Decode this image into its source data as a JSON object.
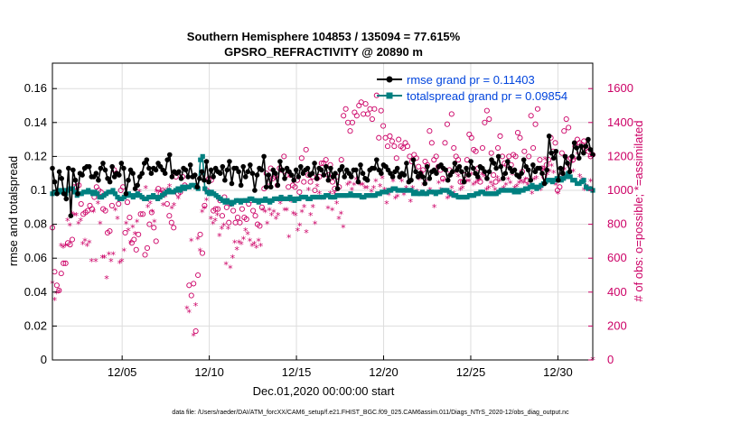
{
  "chart_data": {
    "type": "line",
    "title": "Southern Hemisphere 104853 / 135094 = 77.615%",
    "subtitle": "GPSRO_REFRACTIVITY @ 20890 m",
    "xlabel": "Dec.01,2020 00:00:00 start",
    "ylabel": "rmse and totalspread",
    "y2label": "# of obs: o=possible; *=assimilated",
    "footnote": "data file: /Users/raeder/DAI/ATM_forcXX/CAM6_setup/f.e21.FHIST_BGC.f09_025.CAM6assim.011/Diags_NTrS_2020-12/obs_diag_output.nc",
    "xlim": [
      1,
      32
    ],
    "ylim": [
      0,
      0.175
    ],
    "y2lim": [
      0,
      1750
    ],
    "x_tick_labels": [
      "12/05",
      "12/10",
      "12/15",
      "12/20",
      "12/25",
      "12/30"
    ],
    "y_tick_labels": [
      "0",
      "0.02",
      "0.04",
      "0.06",
      "0.08",
      "0.1",
      "0.12",
      "0.14",
      "0.16"
    ],
    "y2_tick_labels": [
      "0",
      "200",
      "400",
      "600",
      "800",
      "1000",
      "1200",
      "1400",
      "1600"
    ],
    "grid": true,
    "legend_position": "top-right",
    "colors": {
      "rmse": "#000000",
      "spread": "#008080",
      "obs": "#cc0066",
      "legend_text": "#0044dd"
    },
    "series": [
      {
        "name": "rmse grand pr = 0.11403",
        "axis": "left",
        "values": [
          0.113,
          0.105,
          0.098,
          0.111,
          0.107,
          0.098,
          0.095,
          0.113,
          0.085,
          0.112,
          0.106,
          0.098,
          0.11,
          0.109,
          0.113,
          0.114,
          0.114,
          0.108,
          0.108,
          0.11,
          0.106,
          0.113,
          0.116,
          0.112,
          0.107,
          0.105,
          0.114,
          0.108,
          0.11,
          0.109,
          0.116,
          0.113,
          0.098,
          0.106,
          0.112,
          0.11,
          0.101,
          0.103,
          0.108,
          0.11,
          0.116,
          0.118,
          0.113,
          0.11,
          0.113,
          0.112,
          0.116,
          0.114,
          0.112,
          0.11,
          0.118,
          0.121,
          0.108,
          0.111,
          0.11,
          0.111,
          0.107,
          0.113,
          0.112,
          0.108,
          0.115,
          0.108,
          0.109,
          0.102,
          0.107,
          0.111,
          0.106,
          0.117,
          0.105,
          0.112,
          0.108,
          0.113,
          0.111,
          0.11,
          0.114,
          0.106,
          0.112,
          0.117,
          0.104,
          0.113,
          0.113,
          0.111,
          0.103,
          0.114,
          0.108,
          0.111,
          0.115,
          0.11,
          0.1,
          0.109,
          0.113,
          0.112,
          0.12,
          0.102,
          0.109,
          0.102,
          0.112,
          0.11,
          0.103,
          0.117,
          0.112,
          0.107,
          0.113,
          0.111,
          0.109,
          0.106,
          0.112,
          0.108,
          0.114,
          0.11,
          0.112,
          0.113,
          0.109,
          0.11,
          0.116,
          0.107,
          0.113,
          0.112,
          0.109,
          0.114,
          0.106,
          0.113,
          0.108,
          0.11,
          0.101,
          0.112,
          0.114,
          0.108,
          0.112,
          0.11,
          0.108,
          0.112,
          0.112,
          0.105,
          0.115,
          0.11,
          0.107,
          0.106,
          0.112,
          0.113,
          0.113,
          0.118,
          0.112,
          0.11,
          0.115,
          0.114,
          0.112,
          0.11,
          0.108,
          0.111,
          0.113,
          0.108,
          0.11,
          0.109,
          0.116,
          0.105,
          0.106,
          0.118,
          0.111,
          0.108,
          0.11,
          0.108,
          0.104,
          0.114,
          0.107,
          0.111,
          0.112,
          0.11,
          0.114,
          0.115,
          0.113,
          0.112,
          0.106,
          0.109,
          0.111,
          0.116,
          0.112,
          0.114,
          0.111,
          0.105,
          0.113,
          0.109,
          0.117,
          0.113,
          0.11,
          0.108,
          0.114,
          0.113,
          0.111,
          0.107,
          0.111,
          0.118,
          0.116,
          0.113,
          0.12,
          0.114,
          0.107,
          0.11,
          0.117,
          0.113,
          0.111,
          0.112,
          0.109,
          0.108,
          0.11,
          0.118,
          0.114,
          0.112,
          0.106,
          0.115,
          0.111,
          0.113,
          0.113,
          0.11,
          0.104,
          0.112,
          0.132,
          0.122,
          0.119,
          0.123,
          0.106,
          0.113,
          0.11,
          0.12,
          0.116,
          0.111,
          0.12,
          0.128,
          0.125,
          0.119,
          0.126,
          0.122,
          0.126,
          0.13,
          0.124,
          0.121
        ]
      },
      {
        "name": "totalspread grand pr = 0.09854",
        "axis": "left",
        "values": [
          0.098,
          0.099,
          0.099,
          0.1,
          0.099,
          0.1,
          0.098,
          0.1,
          0.101,
          0.101,
          0.099,
          0.097,
          0.098,
          0.098,
          0.099,
          0.099,
          0.1,
          0.099,
          0.098,
          0.099,
          0.098,
          0.096,
          0.096,
          0.097,
          0.098,
          0.099,
          0.099,
          0.1,
          0.098,
          0.096,
          0.095,
          0.095,
          0.096,
          0.097,
          0.098,
          0.097,
          0.096,
          0.097,
          0.098,
          0.097,
          0.096,
          0.095,
          0.095,
          0.096,
          0.096,
          0.097,
          0.096,
          0.095,
          0.096,
          0.097,
          0.098,
          0.099,
          0.1,
          0.099,
          0.099,
          0.1,
          0.101,
          0.1,
          0.102,
          0.101,
          0.102,
          0.102,
          0.103,
          0.103,
          0.102,
          0.101,
          0.118,
          0.12,
          0.101,
          0.099,
          0.098,
          0.099,
          0.098,
          0.097,
          0.096,
          0.095,
          0.094,
          0.093,
          0.094,
          0.093,
          0.092,
          0.093,
          0.094,
          0.094,
          0.093,
          0.094,
          0.094,
          0.094,
          0.095,
          0.095,
          0.094,
          0.094,
          0.093,
          0.094,
          0.094,
          0.095,
          0.094,
          0.093,
          0.094,
          0.095,
          0.095,
          0.095,
          0.096,
          0.095,
          0.095,
          0.095,
          0.096,
          0.095,
          0.094,
          0.095,
          0.095,
          0.096,
          0.096,
          0.096,
          0.095,
          0.095,
          0.096,
          0.096,
          0.096,
          0.096,
          0.096,
          0.096,
          0.097,
          0.097,
          0.096,
          0.096,
          0.096,
          0.097,
          0.097,
          0.097,
          0.097,
          0.097,
          0.097,
          0.098,
          0.097,
          0.097,
          0.097,
          0.097,
          0.096,
          0.096,
          0.097,
          0.097,
          0.097,
          0.097,
          0.097,
          0.098,
          0.098,
          0.099,
          0.099,
          0.099,
          0.1,
          0.1,
          0.101,
          0.101,
          0.1,
          0.1,
          0.1,
          0.1,
          0.1,
          0.1,
          0.1,
          0.098,
          0.099,
          0.098,
          0.098,
          0.099,
          0.098,
          0.098,
          0.099,
          0.099,
          0.099,
          0.098,
          0.099,
          0.099,
          0.1,
          0.1,
          0.1,
          0.099,
          0.098,
          0.097,
          0.097,
          0.096,
          0.096,
          0.096,
          0.096,
          0.096,
          0.097,
          0.097,
          0.097,
          0.098,
          0.098,
          0.099,
          0.099,
          0.098,
          0.098,
          0.098,
          0.098,
          0.098,
          0.098,
          0.099,
          0.1,
          0.1,
          0.1,
          0.1,
          0.1,
          0.1,
          0.099,
          0.1,
          0.099,
          0.1,
          0.1,
          0.101,
          0.101,
          0.102,
          0.103,
          0.102,
          0.101,
          0.102,
          0.103,
          0.104,
          0.105,
          0.106,
          0.106,
          0.105,
          0.106,
          0.107,
          0.107,
          0.106,
          0.107,
          0.108,
          0.11,
          0.108,
          0.106,
          0.106,
          0.104,
          0.104,
          0.105,
          0.106,
          0.102,
          0.101,
          0.101,
          0.1
        ]
      },
      {
        "name": "possible",
        "axis": "right",
        "marker": "o",
        "values": [
          780,
          520,
          440,
          410,
          510,
          570,
          570,
          690,
          680,
          710,
          1020,
          1020,
          1030,
          920,
          860,
          870,
          880,
          910,
          890,
          960,
          1020,
          1000,
          990,
          890,
          880,
          750,
          760,
          910,
          1120,
          1100,
          920,
          1000,
          1020,
          750,
          930,
          840,
          690,
          710,
          650,
          740,
          860,
          860,
          620,
          660,
          800,
          870,
          780,
          700,
          1010,
          980,
          1000,
          990,
          920,
          850,
          810,
          780,
          1080,
          980,
          990,
          1080,
          1030,
          1020,
          440,
          380,
          450,
          170,
          500,
          740,
          630,
          910,
          1000,
          1070,
          1060,
          880,
          890,
          890,
          940,
          850,
          960,
          900,
          810,
          920,
          880,
          810,
          840,
          810,
          890,
          840,
          830,
          920,
          940,
          880,
          850,
          800,
          790,
          900,
          1010,
          1100,
          1050,
          1130,
          1070,
          1080,
          1030,
          1130,
          1120,
          1200,
          1090,
          1020,
          1090,
          1030,
          1020,
          1060,
          990,
          1190,
          1050,
          1240,
          1090,
          1050,
          1080,
          1000,
          1070,
          1080,
          1160,
          1160,
          1180,
          1090,
          1150,
          1050,
          1010,
          1080,
          1020,
          1180,
          1440,
          1480,
          1400,
          1350,
          1400,
          1460,
          1440,
          1500,
          1520,
          1450,
          1510,
          1450,
          1480,
          1420,
          1480,
          1560,
          1310,
          1470,
          1380,
          1310,
          1260,
          1320,
          1290,
          1260,
          1190,
          1300,
          1260,
          1250,
          1280,
          1260,
          1200,
          1170,
          1210,
          1190,
          1140,
          1100,
          1120,
          1170,
          1150,
          1350,
          1280,
          1180,
          1200,
          1140,
          1120,
          1070,
          1280,
          1390,
          1120,
          1450,
          1250,
          1200,
          1180,
          1050,
          1050,
          1090,
          1180,
          1330,
          1310,
          1240,
          1230,
          1130,
          1050,
          1250,
          1400,
          1470,
          1420,
          1220,
          1090,
          1050,
          1250,
          1320,
          1200,
          1160,
          1150,
          1200,
          1150,
          1210,
          1200,
          1340,
          1310,
          1110,
          1230,
          1060,
          1200,
          1440,
          1250,
          1390,
          1480,
          1180,
          1130,
          1080,
          1150,
          1180,
          1310,
          1230,
          1280,
          1000,
          1020,
          1220,
          1350,
          1420,
          1370,
          1190,
          1180,
          1260,
          1300,
          1280,
          1270,
          1290,
          1250,
          1230,
          1200,
          1210
        ]
      },
      {
        "name": "assimilated",
        "axis": "right",
        "marker": "*",
        "values": [
          450,
          350,
          390,
          400,
          670,
          660,
          670,
          820,
          790,
          860,
          850,
          850,
          800,
          820,
          680,
          700,
          670,
          690,
          580,
          870,
          580,
          920,
          800,
          600,
          600,
          480,
          620,
          580,
          620,
          880,
          830,
          570,
          580,
          640,
          800,
          760,
          690,
          780,
          740,
          810,
          990,
          950,
          950,
          1010,
          900,
          920,
          870,
          810,
          990,
          950,
          990,
          910,
          960,
          1000,
          1020,
          890,
          910,
          990,
          950,
          990,
          1000,
          1000,
          300,
          280,
          700,
          140,
          320,
          710,
          640,
          870,
          890,
          940,
          990,
          830,
          800,
          820,
          850,
          730,
          770,
          790,
          560,
          770,
          540,
          600,
          690,
          650,
          690,
          680,
          710,
          760,
          740,
          700,
          670,
          680,
          660,
          700,
          670,
          880,
          870,
          800,
          880,
          850,
          870,
          830,
          850,
          920,
          950,
          880,
          880,
          720,
          930,
          860,
          850,
          760,
          790,
          870,
          900,
          750,
          1000,
          850,
          900,
          800,
          1020,
          980,
          950,
          950,
          960,
          890,
          980,
          880,
          980,
          920,
          830,
          860,
          780,
          960,
          1030,
          1040,
          1000,
          1030,
          1060,
          1040,
          1030,
          1030,
          1010,
          1010,
          960,
          990,
          1010,
          1050,
          970,
          1020,
          1070,
          1000,
          920,
          970,
          1000,
          1050,
          950,
          960,
          1070,
          1050,
          970,
          1010,
          1040,
          930,
          1010,
          980,
          990,
          1060,
          1100,
          1030,
          1050,
          980,
          1000,
          980,
          900,
          980,
          1040,
          1000,
          1050,
          990,
          950,
          960,
          1010,
          980,
          1100,
          1080,
          1000,
          1010,
          1040,
          1050,
          1050,
          1090,
          1030,
          1040,
          1050,
          1060,
          1090,
          1080,
          1000,
          1010,
          1040,
          1020,
          1000,
          1070,
          1050,
          1000,
          1010,
          1030,
          1060,
          1040,
          1090,
          1010,
          1020,
          1040,
          1050,
          1040,
          1060,
          1030,
          1010,
          980,
          1060,
          1070,
          1010,
          1000,
          1120,
          1180,
          1090,
          1110,
          1140,
          1100,
          1030,
          980,
          1060,
          1080,
          1120,
          1180,
          1140,
          1160,
          1110,
          1180,
          1210,
          1080,
          1060,
          1000,
          1020,
          1010,
          1050,
          0
        ]
      }
    ]
  }
}
